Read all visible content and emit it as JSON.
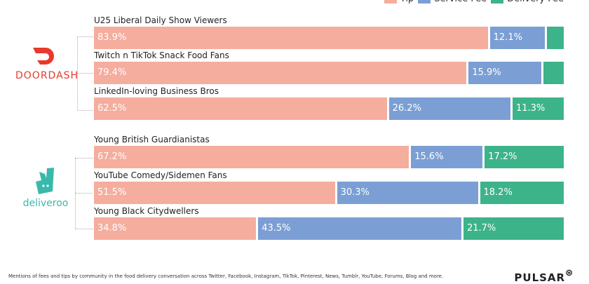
{
  "chart_data": {
    "type": "bar",
    "orientation": "horizontal",
    "stacked": true,
    "xlim": [
      0,
      100
    ],
    "legend": {
      "placement": "top-right",
      "entries": [
        "Tip",
        "Service Fee",
        "Delivery Fee"
      ]
    },
    "colors": [
      "#f5ad9e",
      "#7b9fd4",
      "#3db38a"
    ],
    "groups": [
      {
        "brand": "DOORDASH",
        "categories": [
          "U25 Liberal Daily Show Viewers",
          "Twitch n TikTok Snack Food Fans",
          "LinkedIn-loving Business Bros"
        ]
      },
      {
        "brand": "deliveroo",
        "categories": [
          "Young British Guardianistas",
          "YouTube Comedy/Sidemen Fans",
          "Young Black Citydwellers"
        ]
      }
    ],
    "series": [
      {
        "name": "Tip",
        "values": [
          83.9,
          79.4,
          62.5,
          67.2,
          51.5,
          34.8
        ],
        "labels": [
          "83.9%",
          "79.4%",
          "62.5%",
          "67.2%",
          "51.5%",
          "34.8%"
        ]
      },
      {
        "name": "Service Fee",
        "values": [
          12.1,
          15.9,
          26.2,
          15.6,
          30.3,
          43.5
        ],
        "labels": [
          "12.1%",
          "15.9%",
          "26.2%",
          "15.6%",
          "30.3%",
          "43.5%"
        ]
      },
      {
        "name": "Delivery Fee",
        "values": [
          4.0,
          4.7,
          11.3,
          17.2,
          18.2,
          21.7
        ],
        "labels": [
          "",
          "",
          "11.3%",
          "17.2%",
          "18.2%",
          "21.7%"
        ]
      }
    ]
  },
  "footer": "Mentions of fees and tips by community in the food delivery conversation across Twitter, Facebook, Instagram, TikTok, Pinterest, News, Tumblr, YouTube, Forums, Blog and more.",
  "brand_logo": "PULSAR"
}
